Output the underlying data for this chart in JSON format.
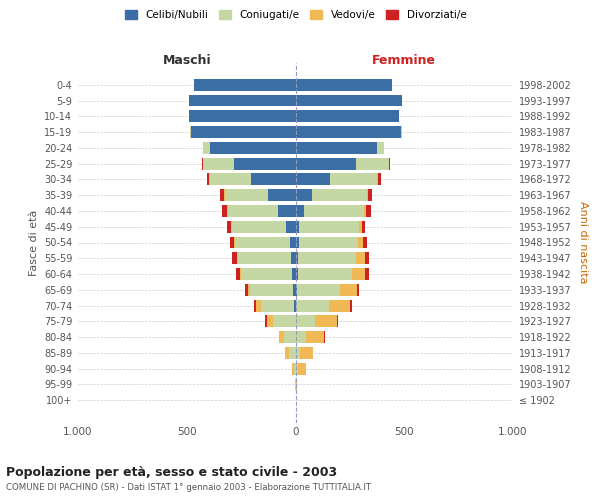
{
  "age_groups": [
    "100+",
    "95-99",
    "90-94",
    "85-89",
    "80-84",
    "75-79",
    "70-74",
    "65-69",
    "60-64",
    "55-59",
    "50-54",
    "45-49",
    "40-44",
    "35-39",
    "30-34",
    "25-29",
    "20-24",
    "15-19",
    "10-14",
    "5-9",
    "0-4"
  ],
  "birth_years": [
    "≤ 1902",
    "1903-1907",
    "1908-1912",
    "1913-1917",
    "1918-1922",
    "1923-1927",
    "1928-1932",
    "1933-1937",
    "1938-1942",
    "1943-1947",
    "1948-1952",
    "1953-1957",
    "1958-1962",
    "1963-1967",
    "1968-1972",
    "1973-1977",
    "1978-1982",
    "1983-1987",
    "1988-1992",
    "1993-1997",
    "1998-2002"
  ],
  "maschi": {
    "celibi": [
      0,
      0,
      0,
      0,
      0,
      0,
      5,
      10,
      15,
      20,
      25,
      45,
      80,
      125,
      205,
      285,
      395,
      480,
      490,
      490,
      465
    ],
    "coniugati": [
      0,
      2,
      8,
      28,
      55,
      105,
      155,
      200,
      235,
      245,
      252,
      248,
      230,
      200,
      190,
      140,
      28,
      4,
      0,
      0,
      0
    ],
    "vedovi": [
      0,
      2,
      8,
      18,
      22,
      28,
      22,
      10,
      5,
      5,
      4,
      4,
      4,
      5,
      5,
      0,
      0,
      0,
      0,
      0,
      0
    ],
    "divorziati": [
      0,
      0,
      0,
      0,
      0,
      5,
      8,
      10,
      20,
      20,
      18,
      20,
      22,
      15,
      8,
      5,
      0,
      0,
      0,
      0,
      0
    ]
  },
  "femmine": {
    "nubili": [
      0,
      0,
      2,
      0,
      0,
      0,
      4,
      8,
      10,
      12,
      14,
      18,
      38,
      78,
      158,
      280,
      375,
      485,
      478,
      488,
      445
    ],
    "coniugate": [
      0,
      2,
      8,
      22,
      48,
      90,
      148,
      198,
      250,
      268,
      272,
      272,
      278,
      250,
      218,
      148,
      32,
      4,
      0,
      0,
      0
    ],
    "vedove": [
      0,
      5,
      38,
      58,
      82,
      102,
      98,
      78,
      58,
      38,
      24,
      14,
      8,
      5,
      4,
      0,
      0,
      0,
      0,
      0,
      0
    ],
    "divorziate": [
      0,
      0,
      0,
      0,
      5,
      5,
      10,
      10,
      18,
      22,
      18,
      14,
      22,
      18,
      14,
      5,
      0,
      0,
      0,
      0,
      0
    ]
  },
  "colors": {
    "celibi": "#3a6ea5",
    "coniugati": "#c5d8a4",
    "vedovi": "#f0b955",
    "divorziati": "#cc2222"
  },
  "xlim": 1000,
  "title": "Popolazione per età, sesso e stato civile - 2003",
  "subtitle": "COMUNE DI PACHINO (SR) - Dati ISTAT 1° gennaio 2003 - Elaborazione TUTTITALIA.IT",
  "ylabel_left": "Fasce di età",
  "ylabel_right": "Anni di nascita",
  "xlabel_left": "Maschi",
  "xlabel_right": "Femmine"
}
